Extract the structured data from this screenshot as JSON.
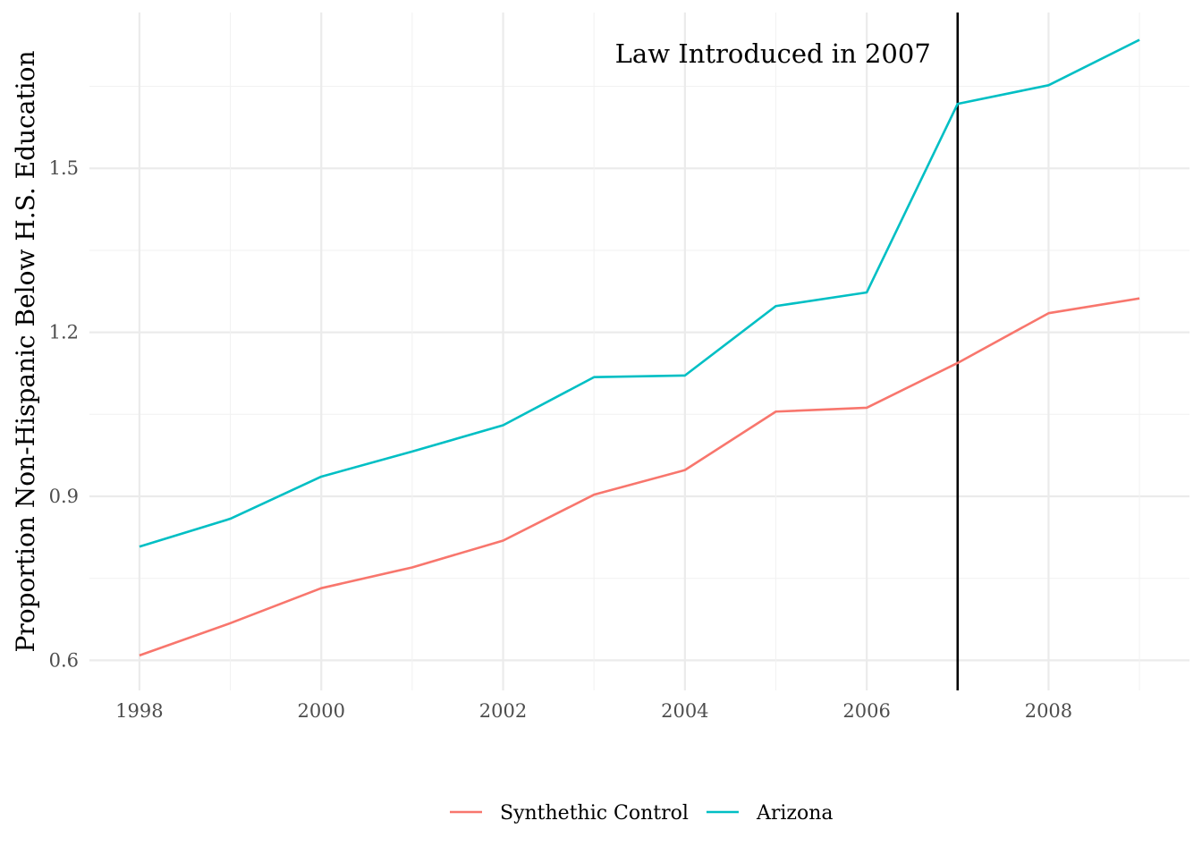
{
  "chart_data": {
    "type": "line",
    "title": "",
    "xlabel": "",
    "ylabel": "Proportion Non-Hispanic Below H.S. Education",
    "x": [
      1998,
      1999,
      2000,
      2001,
      2002,
      2003,
      2004,
      2005,
      2006,
      2007,
      2008,
      2009
    ],
    "xlim": [
      1997.45,
      2009.55
    ],
    "ylim": [
      0.545,
      1.785
    ],
    "x_ticks": [
      "1998",
      "2000",
      "2002",
      "2004",
      "2006",
      "2008"
    ],
    "y_ticks": [
      "0.6",
      "0.9",
      "1.2",
      "1.5"
    ],
    "series": [
      {
        "name": "Synthethic Control",
        "color": "#F8766D",
        "values": [
          0.609,
          0.668,
          0.732,
          0.77,
          0.819,
          0.903,
          0.948,
          1.055,
          1.062,
          1.144,
          1.235,
          1.262
        ]
      },
      {
        "name": "Arizona",
        "color": "#00BFC4",
        "values": [
          0.808,
          0.859,
          0.936,
          0.982,
          1.03,
          1.118,
          1.121,
          1.248,
          1.273,
          1.618,
          1.652,
          1.735
        ]
      }
    ],
    "vline": {
      "x": 2007,
      "color": "#000000"
    },
    "annotation": {
      "text": "Law Introduced in 2007",
      "x": 2007,
      "y": 1.71
    },
    "grid": true,
    "legend_position": "bottom"
  }
}
